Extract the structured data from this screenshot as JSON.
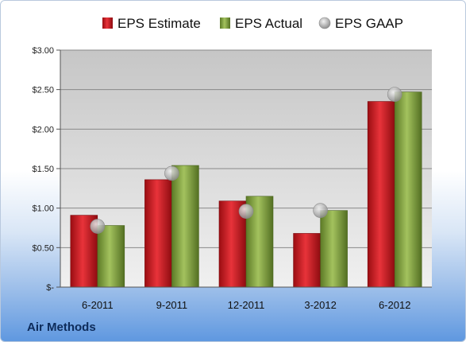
{
  "chart_data": {
    "type": "bar",
    "company": "Air Methods",
    "categories": [
      "6-2011",
      "9-2011",
      "12-2011",
      "3-2012",
      "6-2012"
    ],
    "series": [
      {
        "name": "EPS Estimate",
        "kind": "bar",
        "color": "#c0141b",
        "values": [
          0.91,
          1.36,
          1.09,
          0.68,
          2.35
        ]
      },
      {
        "name": "EPS Actual",
        "kind": "bar",
        "color": "#7c9a3a",
        "values": [
          0.78,
          1.54,
          1.15,
          0.97,
          2.47
        ]
      },
      {
        "name": "EPS GAAP",
        "kind": "marker",
        "color": "#b8b8b8",
        "values": [
          0.77,
          1.44,
          0.96,
          0.97,
          2.44
        ]
      }
    ],
    "ylim": [
      0,
      3.0
    ],
    "yticks": [
      0,
      0.5,
      1.0,
      1.5,
      2.0,
      2.5,
      3.0
    ],
    "ytick_labels": [
      "$-",
      "$0.50",
      "$1.00",
      "$1.50",
      "$2.00",
      "$2.50",
      "$3.00"
    ],
    "legend_position": "top",
    "grid": true
  }
}
